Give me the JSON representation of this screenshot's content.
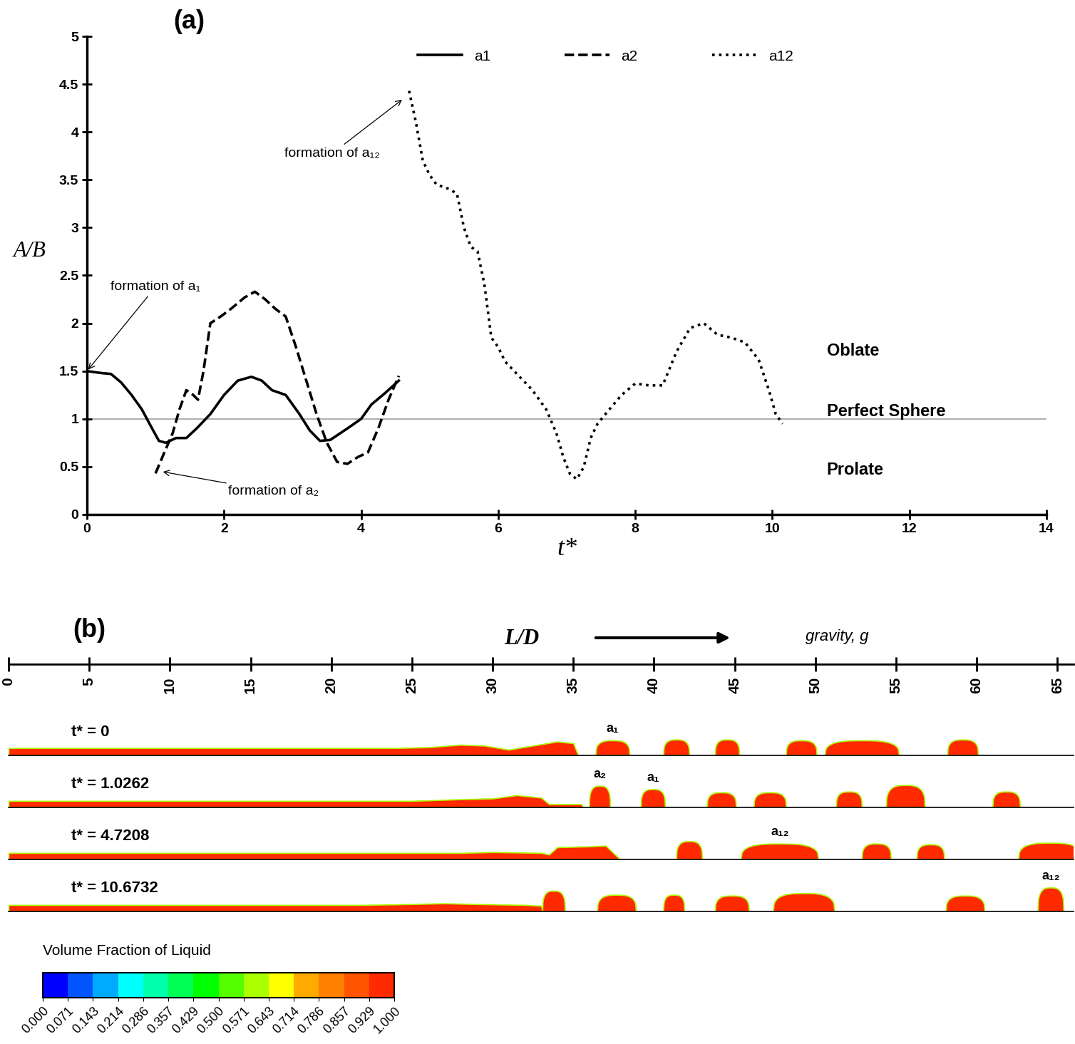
{
  "chart_data": [
    {
      "type": "line",
      "title": "(a)",
      "x_label": "t*",
      "y_label": "A/B",
      "xlim": [
        0,
        14
      ],
      "xticks": [
        0,
        2,
        4,
        6,
        8,
        10,
        12,
        14
      ],
      "ylim": [
        0,
        5
      ],
      "yticks": [
        0,
        0.5,
        1,
        1.5,
        2,
        2.5,
        3,
        3.5,
        4,
        4.5,
        5
      ],
      "legend": "upper right",
      "hline": 1,
      "region_labels": [
        "Oblate",
        "Perfect Sphere",
        "Prolate"
      ],
      "series": [
        {
          "name": "a1",
          "color": "#000000",
          "line_style": "solid",
          "x": [
            0,
            0.2,
            0.35,
            0.5,
            0.65,
            0.8,
            0.95,
            1.05,
            1.15,
            1.3,
            1.45,
            1.6,
            1.8,
            2.0,
            2.2,
            2.4,
            2.55,
            2.7,
            2.9,
            3.1,
            3.25,
            3.4,
            3.55,
            3.8,
            4.0,
            4.15,
            4.35,
            4.55
          ],
          "values": [
            1.5,
            1.48,
            1.47,
            1.38,
            1.25,
            1.1,
            0.9,
            0.77,
            0.75,
            0.8,
            0.8,
            0.9,
            1.05,
            1.25,
            1.4,
            1.44,
            1.4,
            1.3,
            1.25,
            1.05,
            0.88,
            0.77,
            0.78,
            0.9,
            1.0,
            1.15,
            1.27,
            1.4
          ]
        },
        {
          "name": "a2",
          "color": "#000000",
          "line_style": "dashed",
          "x": [
            1.0,
            1.1,
            1.25,
            1.35,
            1.45,
            1.55,
            1.62,
            1.7,
            1.8,
            1.95,
            2.1,
            2.3,
            2.45,
            2.6,
            2.75,
            2.9,
            3.05,
            3.2,
            3.35,
            3.5,
            3.65,
            3.8,
            3.95,
            4.1,
            4.25,
            4.4,
            4.55
          ],
          "values": [
            0.43,
            0.6,
            0.85,
            1.1,
            1.3,
            1.25,
            1.2,
            1.5,
            2.0,
            2.07,
            2.15,
            2.27,
            2.33,
            2.25,
            2.15,
            2.07,
            1.75,
            1.4,
            1.05,
            0.75,
            0.55,
            0.53,
            0.6,
            0.65,
            0.9,
            1.2,
            1.45
          ]
        },
        {
          "name": "a12",
          "color": "#000000",
          "line_style": "dotted",
          "x": [
            4.7,
            4.8,
            4.9,
            5.0,
            5.1,
            5.3,
            5.4,
            5.5,
            5.6,
            5.7,
            5.8,
            5.9,
            6.0,
            6.1,
            6.3,
            6.5,
            6.7,
            6.85,
            6.95,
            7.05,
            7.15,
            7.25,
            7.35,
            7.45,
            7.6,
            7.8,
            8.0,
            8.2,
            8.4,
            8.6,
            8.8,
            9.0,
            9.2,
            9.4,
            9.6,
            9.8,
            9.95,
            10.05,
            10.15
          ],
          "values": [
            4.43,
            4.1,
            3.7,
            3.55,
            3.45,
            3.4,
            3.35,
            3.0,
            2.8,
            2.75,
            2.4,
            1.85,
            1.75,
            1.6,
            1.45,
            1.3,
            1.1,
            0.85,
            0.6,
            0.42,
            0.37,
            0.5,
            0.8,
            0.95,
            1.08,
            1.25,
            1.37,
            1.35,
            1.35,
            1.7,
            1.95,
            2.0,
            1.88,
            1.85,
            1.8,
            1.62,
            1.3,
            1.05,
            0.95
          ]
        }
      ],
      "annotations": [
        {
          "text": "formation of a₁",
          "xy": [
            0,
            1.5
          ]
        },
        {
          "text": "formation of a₂",
          "xy": [
            1.08,
            0.45
          ]
        },
        {
          "text": "formation of a₁₂",
          "xy": [
            4.62,
            4.35
          ]
        }
      ]
    },
    {
      "type": "profile",
      "title": "(b)",
      "x_label": "L/D",
      "direction_label": "gravity, g",
      "xlim": [
        0,
        66
      ],
      "xticks": [
        0,
        5,
        10,
        15,
        20,
        25,
        30,
        35,
        40,
        45,
        50,
        55,
        60,
        65
      ],
      "ylim": [
        0,
        3.2
      ],
      "tick_labels": "x",
      "snapshots": [
        {
          "label": "t* = 0",
          "film": {
            "x": [
              0,
              24,
              26,
              28,
              29.5,
              31,
              32.5,
              34,
              35,
              35.3
            ],
            "h": [
              0.45,
              0.45,
              0.5,
              0.65,
              0.6,
              0.35,
              0.6,
              0.85,
              0.75,
              0
            ]
          },
          "drops": [
            {
              "x": [
                36.4,
                38.5
              ],
              "height": 0.9,
              "label": "a₁"
            },
            {
              "x": [
                40.6,
                42.2
              ],
              "height": 0.95
            },
            {
              "x": [
                43.8,
                45.3
              ],
              "height": 0.95
            },
            {
              "x": [
                48.2,
                50.1
              ],
              "height": 0.9
            },
            {
              "x": [
                50.6,
                55.2
              ],
              "height": 0.9
            },
            {
              "x": [
                58.2,
                60.1
              ],
              "height": 0.95
            }
          ]
        },
        {
          "label": "t* = 1.0262",
          "film": {
            "x": [
              0,
              25,
              28,
              30,
              31.5,
              33,
              33.5,
              35.5,
              35.6
            ],
            "h": [
              0.4,
              0.4,
              0.5,
              0.55,
              0.75,
              0.6,
              0.2,
              0.2,
              0
            ]
          },
          "drops": [
            {
              "x": [
                36,
                37.3
              ],
              "height": 1.3,
              "label": "a₂"
            },
            {
              "x": [
                39.2,
                40.7
              ],
              "height": 1.1,
              "label": "a₁"
            },
            {
              "x": [
                43.3,
                45.1
              ],
              "height": 0.9
            },
            {
              "x": [
                46.2,
                48.2
              ],
              "height": 0.9
            },
            {
              "x": [
                51.3,
                52.9
              ],
              "height": 0.95
            },
            {
              "x": [
                54.4,
                56.8
              ],
              "height": 1.35
            },
            {
              "x": [
                61,
                62.7
              ],
              "height": 0.95
            }
          ]
        },
        {
          "label": "t* = 4.7208",
          "film": {
            "x": [
              0,
              28,
              30,
              33,
              33.5,
              34,
              36,
              37,
              37.9
            ],
            "h": [
              0.4,
              0.4,
              0.45,
              0.4,
              0.3,
              0.75,
              0.8,
              0.85,
              0
            ]
          },
          "drops": [
            {
              "x": [
                41.4,
                43
              ],
              "height": 1.1
            },
            {
              "x": [
                45.4,
                50.2
              ],
              "height": 0.95,
              "label": "a₁₂"
            },
            {
              "x": [
                52.9,
                54.7
              ],
              "height": 0.95
            },
            {
              "x": [
                56.3,
                58
              ],
              "height": 0.9
            },
            {
              "x": [
                62.6,
                66.5
              ],
              "height": 1.0
            }
          ]
        },
        {
          "label": "t* = 10.6732",
          "film": {
            "x": [
              0,
              22,
              25,
              27,
              29,
              32,
              33,
              33.1
            ],
            "h": [
              0.4,
              0.4,
              0.45,
              0.5,
              0.45,
              0.4,
              0.35,
              0
            ]
          },
          "drops": [
            {
              "x": [
                33.1,
                34.5
              ],
              "height": 1.25
            },
            {
              "x": [
                36.5,
                38.9
              ],
              "height": 1.0
            },
            {
              "x": [
                40.6,
                41.9
              ],
              "height": 1.0
            },
            {
              "x": [
                43.8,
                45.9
              ],
              "height": 0.95
            },
            {
              "x": [
                47.4,
                51.2
              ],
              "height": 1.1
            },
            {
              "x": [
                58.1,
                60.5
              ],
              "height": 0.95
            },
            {
              "x": [
                63.8,
                65.4
              ],
              "height": 1.45,
              "label": "a₁₂"
            }
          ]
        }
      ],
      "colorbar": {
        "title": "Volume Fraction of Liquid",
        "range": [
          0,
          1
        ],
        "ticks": [
          {
            "value": 0,
            "label": "0.000"
          },
          {
            "value": 0.071,
            "label": "0.071"
          },
          {
            "value": 0.143,
            "label": "0.143"
          },
          {
            "value": 0.214,
            "label": "0.214"
          },
          {
            "value": 0.286,
            "label": "0.286"
          },
          {
            "value": 0.357,
            "label": "0.357"
          },
          {
            "value": 0.429,
            "label": "0.429"
          },
          {
            "value": 0.5,
            "label": "0.500"
          },
          {
            "value": 0.571,
            "label": "0.571"
          },
          {
            "value": 0.643,
            "label": "0.643"
          },
          {
            "value": 0.714,
            "label": "0.714"
          },
          {
            "value": 0.786,
            "label": "0.786"
          },
          {
            "value": 0.857,
            "label": "0.857"
          },
          {
            "value": 0.929,
            "label": "0.929"
          },
          {
            "value": 1,
            "label": "1.000"
          }
        ]
      }
    }
  ]
}
